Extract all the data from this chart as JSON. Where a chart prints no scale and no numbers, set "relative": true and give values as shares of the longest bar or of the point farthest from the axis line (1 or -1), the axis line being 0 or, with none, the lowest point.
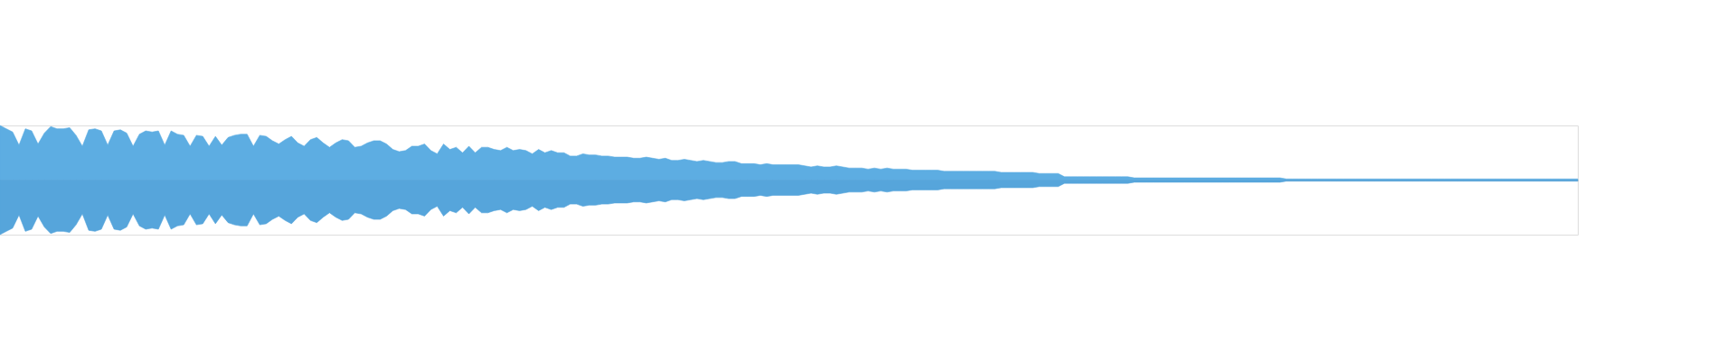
{
  "chart_data": {
    "type": "area",
    "relative": true,
    "categories": [
      null,
      null,
      null,
      null,
      null,
      null,
      null,
      null,
      null,
      null,
      null,
      null,
      null,
      null,
      null,
      null,
      null,
      null,
      null,
      null,
      null,
      null,
      null,
      null,
      null,
      null,
      null,
      null,
      null,
      null,
      null,
      null,
      null,
      null,
      null,
      null,
      null,
      null,
      null,
      null,
      null,
      null,
      null,
      null,
      null,
      null,
      null,
      null,
      null,
      null,
      null,
      null,
      null,
      null,
      null,
      null,
      null,
      null,
      null,
      null,
      null,
      null,
      null,
      null,
      null,
      null,
      null,
      null,
      null,
      null,
      null,
      null,
      null,
      null,
      null,
      null,
      null,
      null,
      null,
      null,
      null,
      null,
      null,
      null,
      null,
      null,
      null,
      null,
      null,
      null,
      null,
      null,
      null,
      null,
      null,
      null,
      null,
      null,
      null,
      null,
      null,
      null,
      null,
      null,
      null,
      null,
      null,
      null,
      null,
      null,
      null,
      null,
      null,
      null,
      null,
      null,
      null,
      null,
      null,
      null,
      null,
      null,
      null,
      null,
      null,
      null,
      null,
      null,
      null,
      null,
      null,
      null,
      null,
      null,
      null,
      null,
      null,
      null,
      null,
      null,
      null,
      null,
      null,
      null,
      null,
      null,
      null,
      null,
      null,
      null,
      null,
      null,
      null,
      null,
      null,
      null,
      null,
      null,
      null,
      null,
      null,
      null,
      null,
      null,
      null,
      null,
      null,
      null,
      null,
      null,
      null,
      null,
      null,
      null,
      null,
      null,
      null,
      null,
      null,
      null,
      null,
      null,
      null,
      null,
      null,
      null,
      null,
      null,
      null,
      null,
      null,
      null,
      null,
      null,
      null,
      null,
      null,
      null,
      null,
      null,
      null,
      null,
      null,
      null,
      null,
      null,
      null,
      null,
      null,
      null,
      null,
      null,
      null,
      null,
      null,
      null,
      null,
      null,
      null,
      null,
      null,
      null,
      null,
      null,
      null,
      null,
      null,
      null,
      null,
      null,
      null,
      null,
      null,
      null,
      null,
      null,
      null,
      null,
      null,
      null,
      null,
      null,
      null,
      null,
      null,
      null,
      null,
      null,
      null,
      null
    ],
    "series": [
      {
        "color": "#5dade2",
        "values": [
          1.0,
          0.94,
          0.88,
          0.64,
          0.94,
          0.9,
          0.66,
          0.86,
          0.98,
          0.94,
          0.94,
          0.96,
          0.82,
          0.62,
          0.92,
          0.94,
          0.9,
          0.64,
          0.9,
          0.92,
          0.86,
          0.62,
          0.84,
          0.9,
          0.88,
          0.9,
          0.64,
          0.9,
          0.84,
          0.82,
          0.62,
          0.82,
          0.8,
          0.62,
          0.8,
          0.64,
          0.78,
          0.82,
          0.84,
          0.84,
          0.62,
          0.82,
          0.8,
          0.72,
          0.66,
          0.74,
          0.8,
          0.68,
          0.62,
          0.74,
          0.78,
          0.68,
          0.6,
          0.68,
          0.74,
          0.72,
          0.6,
          0.62,
          0.68,
          0.72,
          0.72,
          0.66,
          0.56,
          0.52,
          0.54,
          0.62,
          0.62,
          0.66,
          0.54,
          0.48,
          0.66,
          0.56,
          0.6,
          0.5,
          0.62,
          0.5,
          0.6,
          0.6,
          0.56,
          0.54,
          0.6,
          0.54,
          0.56,
          0.54,
          0.48,
          0.56,
          0.5,
          0.54,
          0.5,
          0.5,
          0.44,
          0.44,
          0.48,
          0.46,
          0.46,
          0.44,
          0.44,
          0.42,
          0.42,
          0.42,
          0.4,
          0.4,
          0.42,
          0.4,
          0.38,
          0.4,
          0.36,
          0.36,
          0.38,
          0.36,
          0.34,
          0.36,
          0.34,
          0.32,
          0.32,
          0.34,
          0.34,
          0.3,
          0.3,
          0.3,
          0.28,
          0.3,
          0.28,
          0.28,
          0.28,
          0.28,
          0.28,
          0.26,
          0.24,
          0.26,
          0.24,
          0.24,
          0.26,
          0.24,
          0.22,
          0.22,
          0.22,
          0.2,
          0.22,
          0.2,
          0.22,
          0.2,
          0.2,
          0.2,
          0.18,
          0.18,
          0.18,
          0.18,
          0.18,
          0.16,
          0.16,
          0.16,
          0.16,
          0.16,
          0.16,
          0.16,
          0.16,
          0.16,
          0.14,
          0.14,
          0.14,
          0.14,
          0.14,
          0.14,
          0.12,
          0.12,
          0.12,
          0.12,
          0.06,
          0.06,
          0.06,
          0.06,
          0.06,
          0.06,
          0.06,
          0.06,
          0.06,
          0.06,
          0.06,
          0.04,
          0.04,
          0.04,
          0.04,
          0.04,
          0.04,
          0.04,
          0.04,
          0.04,
          0.04,
          0.04,
          0.04,
          0.04,
          0.04,
          0.04,
          0.04,
          0.04,
          0.04,
          0.04,
          0.04,
          0.04,
          0.04,
          0.04,
          0.04,
          0.02,
          0.02,
          0.02,
          0.02,
          0.02,
          0.02,
          0.02,
          0.02,
          0.02,
          0.02,
          0.02,
          0.02,
          0.02,
          0.02,
          0.02,
          0.02,
          0.02,
          0.02,
          0.02,
          0.02,
          0.02,
          0.02,
          0.02,
          0.02,
          0.02,
          0.02,
          0.02,
          0.02,
          0.02,
          0.02,
          0.02,
          0.02,
          0.02,
          0.02,
          0.02,
          0.02,
          0.02,
          0.02,
          0.02,
          0.02,
          0.02,
          0.02,
          0.02,
          0.02,
          0.02,
          0.02,
          0.02
        ]
      },
      {
        "color": "#56a5db",
        "values": [
          -1.0,
          -0.94,
          -0.88,
          -0.64,
          -0.94,
          -0.9,
          -0.66,
          -0.86,
          -0.98,
          -0.94,
          -0.94,
          -0.96,
          -0.82,
          -0.62,
          -0.92,
          -0.94,
          -0.9,
          -0.64,
          -0.9,
          -0.92,
          -0.86,
          -0.62,
          -0.84,
          -0.9,
          -0.88,
          -0.9,
          -0.64,
          -0.9,
          -0.84,
          -0.82,
          -0.62,
          -0.82,
          -0.8,
          -0.62,
          -0.8,
          -0.64,
          -0.78,
          -0.82,
          -0.84,
          -0.84,
          -0.62,
          -0.82,
          -0.8,
          -0.72,
          -0.66,
          -0.74,
          -0.8,
          -0.68,
          -0.62,
          -0.74,
          -0.78,
          -0.68,
          -0.6,
          -0.68,
          -0.74,
          -0.72,
          -0.6,
          -0.62,
          -0.68,
          -0.72,
          -0.72,
          -0.66,
          -0.56,
          -0.52,
          -0.54,
          -0.62,
          -0.62,
          -0.66,
          -0.54,
          -0.48,
          -0.66,
          -0.56,
          -0.6,
          -0.5,
          -0.62,
          -0.5,
          -0.6,
          -0.6,
          -0.56,
          -0.54,
          -0.6,
          -0.54,
          -0.56,
          -0.54,
          -0.48,
          -0.56,
          -0.5,
          -0.54,
          -0.5,
          -0.5,
          -0.44,
          -0.44,
          -0.48,
          -0.46,
          -0.46,
          -0.44,
          -0.44,
          -0.42,
          -0.42,
          -0.42,
          -0.4,
          -0.4,
          -0.42,
          -0.4,
          -0.38,
          -0.4,
          -0.36,
          -0.36,
          -0.38,
          -0.36,
          -0.34,
          -0.36,
          -0.34,
          -0.32,
          -0.32,
          -0.34,
          -0.34,
          -0.3,
          -0.3,
          -0.3,
          -0.28,
          -0.3,
          -0.28,
          -0.28,
          -0.28,
          -0.28,
          -0.28,
          -0.26,
          -0.24,
          -0.26,
          -0.24,
          -0.24,
          -0.26,
          -0.24,
          -0.22,
          -0.22,
          -0.22,
          -0.2,
          -0.22,
          -0.2,
          -0.22,
          -0.2,
          -0.2,
          -0.2,
          -0.18,
          -0.18,
          -0.18,
          -0.18,
          -0.18,
          -0.16,
          -0.16,
          -0.16,
          -0.16,
          -0.16,
          -0.16,
          -0.16,
          -0.16,
          -0.16,
          -0.14,
          -0.14,
          -0.14,
          -0.14,
          -0.14,
          -0.14,
          -0.12,
          -0.12,
          -0.12,
          -0.12,
          -0.06,
          -0.06,
          -0.06,
          -0.06,
          -0.06,
          -0.06,
          -0.06,
          -0.06,
          -0.06,
          -0.06,
          -0.06,
          -0.04,
          -0.04,
          -0.04,
          -0.04,
          -0.04,
          -0.04,
          -0.04,
          -0.04,
          -0.04,
          -0.04,
          -0.04,
          -0.04,
          -0.04,
          -0.04,
          -0.04,
          -0.04,
          -0.04,
          -0.04,
          -0.04,
          -0.04,
          -0.04,
          -0.04,
          -0.04,
          -0.04,
          -0.02,
          -0.02,
          -0.02,
          -0.02,
          -0.02,
          -0.02,
          -0.02,
          -0.02,
          -0.02,
          -0.02,
          -0.02,
          -0.02,
          -0.02,
          -0.02,
          -0.02,
          -0.02,
          -0.02,
          -0.02,
          -0.02,
          -0.02,
          -0.02,
          -0.02,
          -0.02,
          -0.02,
          -0.02,
          -0.02,
          -0.02,
          -0.02,
          -0.02,
          -0.02,
          -0.02,
          -0.02,
          -0.02,
          -0.02,
          -0.02,
          -0.02,
          -0.02,
          -0.02,
          -0.02,
          -0.02,
          -0.02,
          -0.02,
          -0.02,
          -0.02,
          -0.02,
          -0.02,
          -0.02
        ]
      }
    ]
  }
}
